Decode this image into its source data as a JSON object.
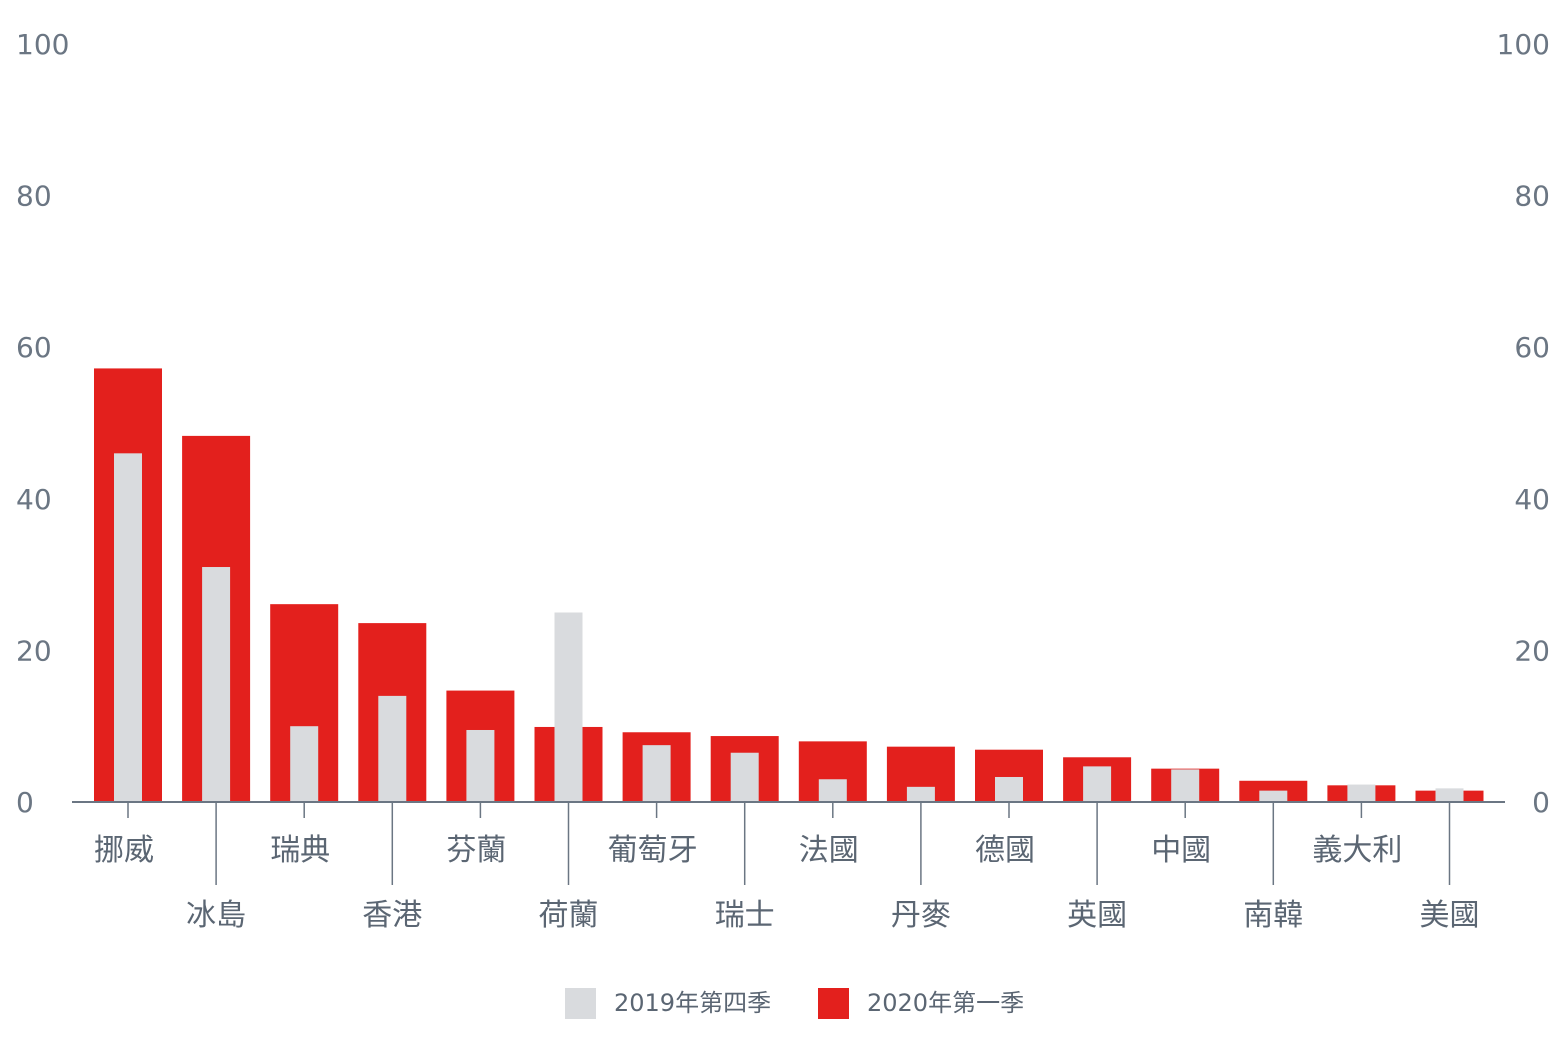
{
  "chart_data": {
    "type": "bar",
    "categories": [
      "挪威",
      "冰島",
      "瑞典",
      "香港",
      "芬蘭",
      "荷蘭",
      "葡萄牙",
      "瑞士",
      "法國",
      "丹麥",
      "德國",
      "英國",
      "中國",
      "南韓",
      "義大利",
      "美國"
    ],
    "series": [
      {
        "name": "2019年第四季",
        "color": "#d9dbde",
        "values": [
          46,
          31,
          10,
          14,
          9.5,
          25,
          7.5,
          6.5,
          3,
          2,
          3.3,
          4.7,
          4.3,
          1.5,
          2.3,
          1.8
        ]
      },
      {
        "name": "2020年第一季",
        "color": "#e3201d",
        "values": [
          57.2,
          48.3,
          26.1,
          23.6,
          14.7,
          9.9,
          9.2,
          8.7,
          8,
          7.3,
          6.9,
          5.9,
          4.4,
          2.8,
          2.2,
          1.5
        ]
      }
    ],
    "ylim": [
      0,
      100
    ],
    "yticks": [
      0,
      20,
      40,
      60,
      80,
      100
    ],
    "legend_position": "bottom-center"
  },
  "colors": {
    "axis": "#6b7683",
    "text": "#5b6673"
  }
}
